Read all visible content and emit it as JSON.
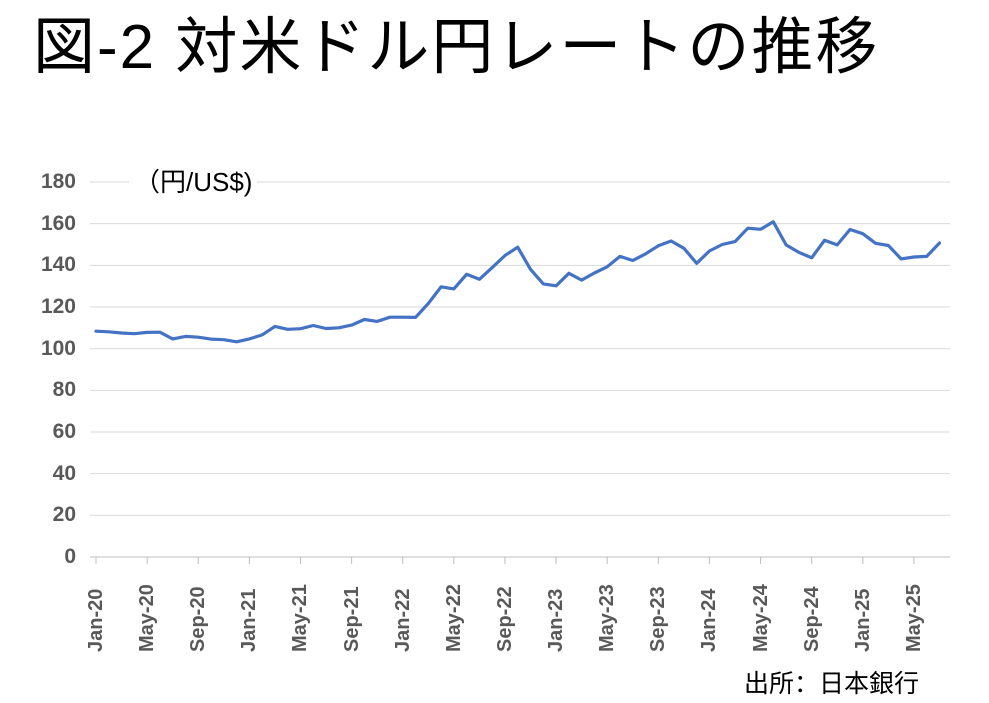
{
  "page": {
    "title": "図-2 対米ドル円レートの推移",
    "source": "出所：日本銀行"
  },
  "chart_data": {
    "type": "line",
    "title": "図-2 対米ドル円レートの推移",
    "unit_label": "（円/US$)",
    "ylabel": "円/US$",
    "source": "出所：日本銀行",
    "ylim": [
      0,
      180
    ],
    "ytick_step": 20,
    "grid": true,
    "legend": false,
    "x_tick_interval": 4,
    "x_tick_labels": [
      "Jan-20",
      "May-20",
      "Sep-20",
      "Jan-21",
      "May-21",
      "Sep-21",
      "Jan-22",
      "May-22",
      "Sep-22",
      "Jan-23",
      "May-23",
      "Sep-23",
      "Jan-24",
      "May-24",
      "Sep-24",
      "Jan-25",
      "May-25"
    ],
    "categories": [
      "Jan-20",
      "Feb-20",
      "Mar-20",
      "Apr-20",
      "May-20",
      "Jun-20",
      "Jul-20",
      "Aug-20",
      "Sep-20",
      "Oct-20",
      "Nov-20",
      "Dec-20",
      "Jan-21",
      "Feb-21",
      "Mar-21",
      "Apr-21",
      "May-21",
      "Jun-21",
      "Jul-21",
      "Aug-21",
      "Sep-21",
      "Oct-21",
      "Nov-21",
      "Dec-21",
      "Jan-22",
      "Feb-22",
      "Mar-22",
      "Apr-22",
      "May-22",
      "Jun-22",
      "Jul-22",
      "Aug-22",
      "Sep-22",
      "Oct-22",
      "Nov-22",
      "Dec-22",
      "Jan-23",
      "Feb-23",
      "Mar-23",
      "Apr-23",
      "May-23",
      "Jun-23",
      "Jul-23",
      "Aug-23",
      "Sep-23",
      "Oct-23",
      "Nov-23",
      "Dec-23",
      "Jan-24",
      "Feb-24",
      "Mar-24",
      "Apr-24",
      "May-24",
      "Jun-24",
      "Jul-24",
      "Aug-24",
      "Sep-24",
      "Oct-24",
      "Nov-24",
      "Dec-24",
      "Jan-25",
      "Feb-25",
      "Mar-25",
      "Apr-25",
      "May-25",
      "Jun-25",
      "Jul-25"
    ],
    "values": [
      108.4,
      108.1,
      107.5,
      107.2,
      107.8,
      107.9,
      104.7,
      105.9,
      105.5,
      104.6,
      104.3,
      103.3,
      104.7,
      106.6,
      110.7,
      109.3,
      109.6,
      111.1,
      109.7,
      110.0,
      111.3,
      114.0,
      113.1,
      115.1,
      115.1,
      115.0,
      121.7,
      129.7,
      128.7,
      135.7,
      133.3,
      138.9,
      144.7,
      148.7,
      138.1,
      131.1,
      130.2,
      136.2,
      132.9,
      136.3,
      139.3,
      144.3,
      142.3,
      145.5,
      149.4,
      151.7,
      148.2,
      141.0,
      146.9,
      150.0,
      151.4,
      157.8,
      157.3,
      160.9,
      149.8,
      146.2,
      143.6,
      152.0,
      149.8,
      157.2,
      155.2,
      150.6,
      149.5,
      143.1,
      144.0,
      144.3,
      150.7
    ],
    "line_color": "#4472C4",
    "gridline_color": "#D9D9D9",
    "axis_line_color": "#BFBFBF",
    "axis_label_color": "#595959"
  }
}
